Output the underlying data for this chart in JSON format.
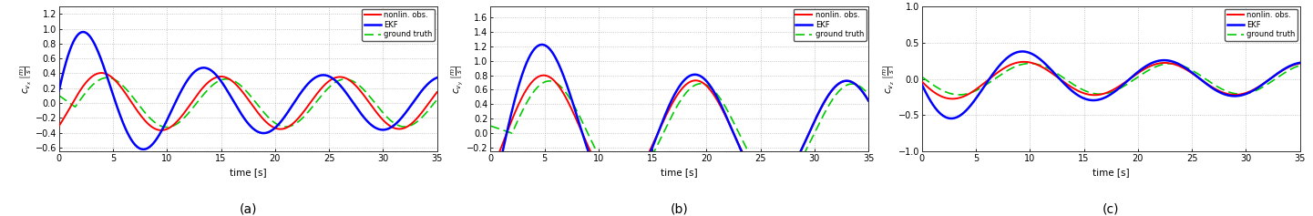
{
  "title_a": "(a)",
  "title_b": "(b)",
  "title_c": "(c)",
  "xlabel": "time [s]",
  "ylabel_a": "$c_{v_x}$ $\\left[\\frac{m}{s}\\right]$",
  "ylabel_b": "$c_{v_y}$ $\\left[\\frac{m}{s}\\right]$",
  "ylabel_c": "$c_{v_z}$ $\\left[\\frac{m}{s}\\right]$",
  "xlim": [
    0,
    35
  ],
  "ylim_a": [
    -0.65,
    1.3
  ],
  "ylim_b": [
    -0.25,
    1.75
  ],
  "ylim_c": [
    -1.0,
    1.0
  ],
  "xticks": [
    0,
    5,
    10,
    15,
    20,
    25,
    30,
    35
  ],
  "yticks_a": [
    -0.6,
    -0.4,
    -0.2,
    0.0,
    0.2,
    0.4,
    0.6,
    0.8,
    1.0,
    1.2
  ],
  "yticks_b": [
    -0.2,
    0.0,
    0.2,
    0.4,
    0.6,
    0.8,
    1.0,
    1.2,
    1.4,
    1.6
  ],
  "yticks_c": [
    -1.0,
    -0.5,
    0.0,
    0.5,
    1.0
  ],
  "legend_labels": [
    "nonlin. obs.",
    "EKF",
    "ground truth"
  ],
  "line_colors": [
    "#FF0000",
    "#0000FF",
    "#00CC00"
  ],
  "background_color": "#FFFFFF",
  "grid_color": "#888888"
}
